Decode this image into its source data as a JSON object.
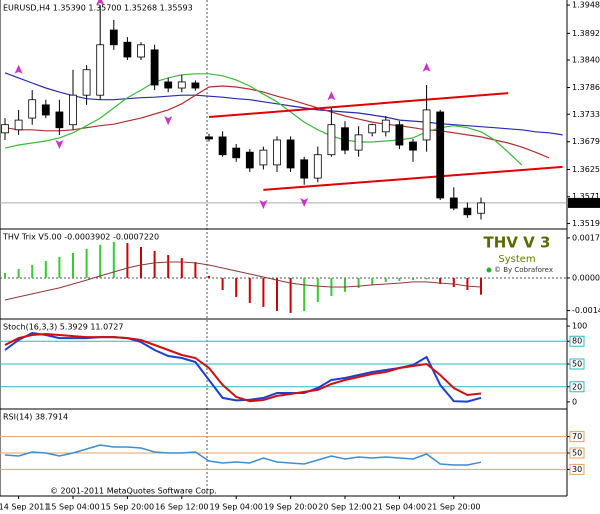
{
  "chart_data": [
    {
      "type": "candlestick",
      "title": "EURUSD,H4  1.35390 1.35700 1.35268 1.35593",
      "categories": [
        null,
        "14 Sep 2011",
        null,
        null,
        null,
        "15 Sep 04:00",
        null,
        null,
        null,
        "15 Sep 20:00",
        null,
        null,
        null,
        "16 Sep 12:00",
        null,
        null,
        null,
        "19 Sep 04:00",
        null,
        null,
        null,
        "19 Sep 20:00",
        null,
        null,
        null,
        "20 Sep 12:00",
        null,
        null,
        null,
        "21 Sep 04:00",
        null,
        null,
        null,
        "21 Sep 20:00",
        null,
        null,
        null,
        null,
        null,
        null,
        null,
        null
      ],
      "open": [
        1.3697,
        1.3703,
        1.3726,
        1.3752,
        1.3738,
        1.3713,
        1.3771,
        1.3771,
        1.3899,
        1.3875,
        1.3846,
        1.386,
        1.3797,
        1.3785,
        1.3795,
        1.3689,
        1.3689,
        1.3667,
        1.3659,
        1.3634,
        1.3634,
        1.3683,
        1.3644,
        1.3608,
        1.3654,
        1.3707,
        1.3663,
        1.3697,
        1.3699,
        1.3713,
        1.3679,
        1.3683,
        1.3738,
        1.3569,
        1.3549,
        1.3539,
        null,
        null,
        null,
        null,
        null,
        null
      ],
      "high": [
        1.3726,
        1.3742,
        1.3781,
        1.3762,
        1.3762,
        1.3821,
        1.383,
        1.3948,
        1.3919,
        1.3885,
        1.3875,
        1.387,
        1.3805,
        1.3811,
        1.38,
        1.3695,
        1.37,
        1.3675,
        1.3665,
        1.367,
        1.369,
        1.369,
        1.365,
        1.367,
        1.3746,
        1.372,
        1.371,
        1.3715,
        1.373,
        1.372,
        1.3685,
        1.3791,
        1.3742,
        1.359,
        1.356,
        1.357,
        null,
        null,
        null,
        null,
        null,
        null
      ],
      "low": [
        1.3683,
        1.3693,
        1.3713,
        1.3726,
        1.3693,
        1.3703,
        1.3752,
        1.3762,
        1.386,
        1.384,
        1.384,
        1.3781,
        1.3777,
        1.3777,
        1.378,
        1.368,
        1.365,
        1.364,
        1.362,
        1.3625,
        1.362,
        1.362,
        1.3595,
        1.36,
        1.365,
        1.3655,
        1.365,
        1.369,
        1.369,
        1.3665,
        1.364,
        1.366,
        1.3565,
        1.3545,
        1.353,
        1.35268,
        null,
        null,
        null,
        null,
        null,
        null
      ],
      "close": [
        1.3713,
        1.3722,
        1.3762,
        1.3732,
        1.3707,
        1.3771,
        1.3821,
        1.387,
        1.387,
        1.3846,
        1.387,
        1.3791,
        1.3785,
        1.3797,
        1.3785,
        1.3685,
        1.3654,
        1.3648,
        1.3628,
        1.3663,
        1.3683,
        1.3628,
        1.3608,
        1.3654,
        1.3713,
        1.3663,
        1.3693,
        1.3713,
        1.3722,
        1.3673,
        1.3663,
        1.3742,
        1.3569,
        1.3549,
        1.3536,
        1.35593,
        null,
        null,
        null,
        null,
        null,
        null
      ],
      "bull_color": "#ffffff",
      "bear_color": "#000000",
      "lines": [
        {
          "color": "#2a2ab0",
          "values": [
            1.3815,
            1.3805,
            1.3795,
            1.3785,
            1.3777,
            1.377,
            1.3764,
            1.3762,
            1.3762,
            1.3764,
            1.3766,
            1.3767,
            1.3769,
            1.3771,
            1.3771,
            1.3769,
            1.3767,
            1.3764,
            1.3762,
            1.3758,
            1.3754,
            1.375,
            1.3746,
            1.3742,
            1.374,
            1.3738,
            1.3736,
            1.3732,
            1.3728,
            1.3722,
            1.372,
            1.3718,
            1.3715,
            1.3713,
            1.3711,
            1.3709,
            1.3707,
            1.3705,
            1.3703,
            1.3699,
            1.3697,
            1.3693
          ]
        },
        {
          "color": "#b03030",
          "values": [
            1.3707,
            1.3703,
            1.3703,
            1.3701,
            1.3701,
            1.3703,
            1.3707,
            1.3711,
            1.3714,
            1.372,
            1.3726,
            1.3734,
            1.3742,
            1.3754,
            1.3771,
            1.3787,
            1.3789,
            1.3787,
            1.3783,
            1.3777,
            1.3769,
            1.3762,
            1.3754,
            1.3746,
            1.3738,
            1.373,
            1.3724,
            1.3718,
            1.3714,
            1.3711,
            1.3707,
            1.3703,
            1.3701,
            1.3697,
            1.3693,
            1.3689,
            1.3683,
            1.3677,
            1.3669,
            1.3659,
            1.3648,
            null
          ]
        },
        {
          "color": "#3cb93c",
          "values": [
            1.3667,
            1.3673,
            1.3677,
            1.3681,
            1.3687,
            1.3697,
            1.3711,
            1.3726,
            1.3746,
            1.3766,
            1.3781,
            1.3797,
            1.3805,
            1.3811,
            1.3813,
            1.3813,
            1.3809,
            1.3801,
            1.3789,
            1.3773,
            1.3758,
            1.3738,
            1.3718,
            1.3703,
            1.3691,
            1.3683,
            1.3679,
            1.3679,
            1.3681,
            1.3683,
            1.3687,
            1.3699,
            1.3707,
            1.3711,
            1.3707,
            1.3699,
            1.3683,
            1.3659,
            1.3634,
            null,
            null,
            null
          ]
        }
      ],
      "trendlines": [
        {
          "color": "#e00000",
          "x": [
            15,
            37
          ],
          "values": [
            1.3728,
            1.3775
          ]
        },
        {
          "color": "#e00000",
          "x": [
            19,
            41
          ],
          "values": [
            1.3585,
            1.363
          ]
        }
      ],
      "arrows_up": {
        "color": "#cc33cc",
        "x": [
          1,
          7,
          24,
          31
        ],
        "values": [
          1.3817,
          1.3952,
          1.3765,
          1.3821
        ]
      },
      "arrows_down": {
        "color": "#cc33cc",
        "x": [
          4,
          12,
          19,
          22
        ],
        "values": [
          1.3679,
          1.3726,
          1.3561,
          1.3565
        ]
      },
      "last_price": 1.35593,
      "ylim": [
        1.351,
        1.3958
      ],
      "yticks": [
        {
          "value": 1.3948,
          "label": "1.39480"
        },
        1.38925,
        {
          "value": 1.384,
          "label": "1.38400"
        },
        {
          "value": 1.3786,
          "label": "1.37860"
        },
        1.37335,
        1.36795,
        {
          "value": 1.3625,
          "label": "1.36250"
        },
        1.35715,
        {
          "value": 1.3519,
          "label": "1.35190"
        }
      ]
    },
    {
      "type": "bar",
      "title": "THV Trix V5.00 -0.0003902 -0.0007220",
      "values": [
        0.00022,
        0.00039,
        0.00056,
        0.00073,
        0.00091,
        0.00108,
        0.00125,
        0.00143,
        0.00156,
        0.00151,
        0.00134,
        0.00117,
        0.00099,
        0.00086,
        0.00069,
        9e-05,
        -0.00052,
        -0.00082,
        -0.00108,
        -0.00125,
        -0.00143,
        -0.00151,
        -0.00143,
        -0.00104,
        -0.00078,
        -0.0006,
        -0.00043,
        -0.0003,
        -0.00017,
        -0.00013,
        -9e-05,
        -6e-05,
        -0.00026,
        -0.00039,
        -0.00052,
        -0.000722
      ],
      "up_color": "#33cc33",
      "down_color": "#cc0000",
      "line": {
        "color": "#8b3a3a",
        "values": [
          -0.00095,
          -0.00082,
          -0.00069,
          -0.00056,
          -0.00043,
          -0.00026,
          -9e-05,
          9e-05,
          0.00026,
          0.00043,
          0.00056,
          0.00065,
          0.00069,
          0.00069,
          0.00065,
          0.00056,
          0.00043,
          0.0003,
          0.00017,
          4e-05,
          -9e-05,
          -0.00022,
          -0.0003,
          -0.00035,
          -0.00039,
          -0.00039,
          -0.00035,
          -0.0003,
          -0.00026,
          -0.00022,
          -0.00017,
          -0.00017,
          -0.00022,
          -0.00026,
          -0.00035,
          -0.0003902
        ]
      },
      "zero_line": true,
      "ylim": [
        -0.00173,
        0.00203
      ],
      "yticks": [
        0.001731,
        {
          "value": 0,
          "label": "0.00000"
        },
        -0.00141
      ],
      "logo": {
        "title": "THV V 3",
        "subtitle": "System",
        "credit": "© By Cobraforex"
      }
    },
    {
      "type": "line",
      "title": "Stoch(16,3,3) 5.3929 11.0727",
      "series": [
        {
          "color": "#1f3fcf",
          "values": [
            68.4,
            81.6,
            90.8,
            88.2,
            84.2,
            84.2,
            84.2,
            85.5,
            85.5,
            84.2,
            78.9,
            68.4,
            60.5,
            57.9,
            52.6,
            28.9,
            5.3,
            2,
            3,
            5.3,
            11.8,
            11.8,
            11.8,
            18.4,
            28.9,
            31.6,
            35.5,
            39.5,
            42.1,
            44.7,
            48.7,
            59.2,
            22.4,
            1,
            0.5,
            5.3929
          ]
        },
        {
          "color": "#d01010",
          "values": [
            75,
            84.2,
            88.2,
            89.5,
            88.2,
            86.8,
            85.5,
            85.5,
            85.5,
            84.2,
            81.6,
            75,
            68.4,
            61.8,
            57.9,
            44.7,
            22.4,
            6.6,
            1,
            2.6,
            7.9,
            10.5,
            13.2,
            15.8,
            23.7,
            28.9,
            32.9,
            36.8,
            39.5,
            44.7,
            47.4,
            50,
            35.5,
            18.4,
            9.2,
            11.0727
          ]
        }
      ],
      "ylim": [
        -8,
        108
      ],
      "yticks": [
        100,
        80,
        50,
        20,
        0
      ],
      "levels": [
        80,
        50,
        20
      ],
      "level_color": "#22bbcc"
    },
    {
      "type": "line",
      "title": "RSI(14) 38.7914",
      "series": [
        {
          "color": "#3a8fcf",
          "values": [
            47.6,
            46.3,
            51.2,
            50,
            46.3,
            50,
            54.9,
            59.8,
            57.3,
            57.3,
            56.1,
            51.2,
            50,
            50,
            51.2,
            40.2,
            37.8,
            39,
            37.8,
            43.9,
            39,
            37.8,
            36.6,
            41.5,
            46.3,
            42.7,
            45.1,
            43.9,
            45.1,
            43.9,
            42.7,
            48.8,
            36.6,
            35.4,
            35.4,
            38.7914
          ]
        }
      ],
      "ylim": [
        0,
        100
      ],
      "yticks": [
        70,
        50,
        30
      ],
      "levels": [
        70,
        50,
        30
      ],
      "level_color": "#e8a060",
      "footer": "© 2001-2011 MetaQuotes Software Corp."
    }
  ]
}
